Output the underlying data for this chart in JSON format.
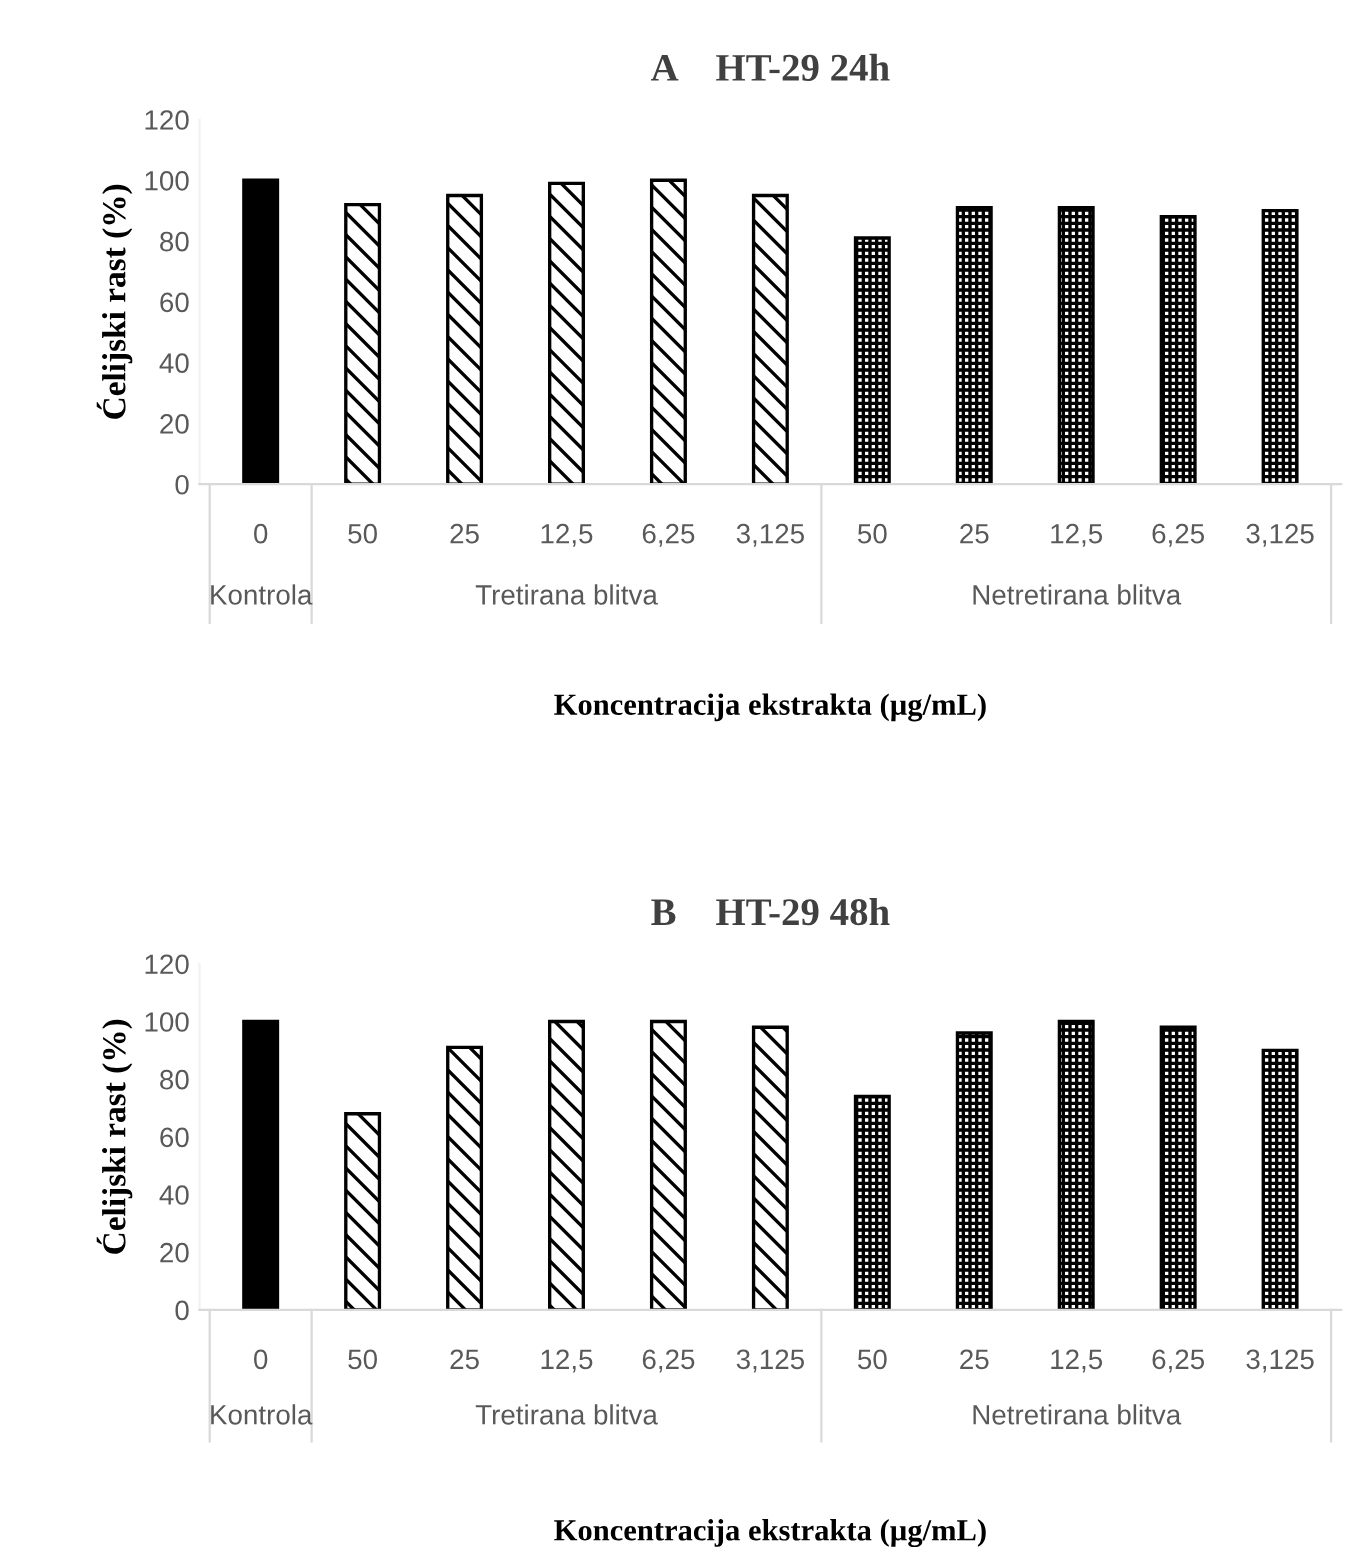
{
  "chart_data": [
    {
      "type": "bar",
      "title": "A    HT-29 24h",
      "xlabel": "Koncentracija ekstrakta (µg/mL)",
      "ylabel": "Ćelijski rast (%)",
      "categories": [
        "0",
        "50",
        "25",
        "12,5",
        "6,25",
        "3,125",
        "50",
        "25",
        "12,5",
        "6,25",
        "3,125"
      ],
      "series": [
        {
          "color": "#000000",
          "values": [
            100,
            null,
            null,
            null,
            null,
            null,
            null,
            null,
            null,
            null,
            null
          ]
        },
        {
          "color": "#000000",
          "values": [
            null,
            92,
            95,
            99,
            100,
            95,
            null,
            null,
            null,
            null,
            null
          ]
        },
        {
          "color": "#000000",
          "values": [
            null,
            null,
            null,
            null,
            null,
            null,
            81,
            91,
            91,
            88,
            90
          ]
        }
      ],
      "annotations": [
        "Kontrola",
        "Tretirana blitva",
        "Netretirana blitva"
      ],
      "ylim": [
        0,
        120
      ],
      "yticks": [
        0,
        20,
        40,
        60,
        80,
        100,
        120
      ],
      "grid": false,
      "legend": false
    },
    {
      "type": "bar",
      "title": "B    HT-29 48h",
      "xlabel": "Koncentracija ekstrakta (µg/mL)",
      "ylabel": "Ćelijski rast (%)",
      "categories": [
        "0",
        "50",
        "25",
        "12,5",
        "6,25",
        "3,125",
        "50",
        "25",
        "12,5",
        "6,25",
        "3,125"
      ],
      "series": [
        {
          "color": "#000000",
          "values": [
            100,
            null,
            null,
            null,
            null,
            null,
            null,
            null,
            null,
            null,
            null
          ]
        },
        {
          "color": "#000000",
          "values": [
            null,
            68,
            91,
            100,
            100,
            98,
            null,
            null,
            null,
            null,
            null
          ]
        },
        {
          "color": "#000000",
          "values": [
            null,
            null,
            null,
            null,
            null,
            null,
            74,
            96,
            100,
            98,
            90
          ]
        }
      ],
      "annotations": [
        "Kontrola",
        "Tretirana blitva",
        "Netretirana blitva"
      ],
      "ylim": [
        0,
        120
      ],
      "yticks": [
        0,
        20,
        40,
        60,
        80,
        100,
        120
      ],
      "grid": false,
      "legend": false
    }
  ]
}
